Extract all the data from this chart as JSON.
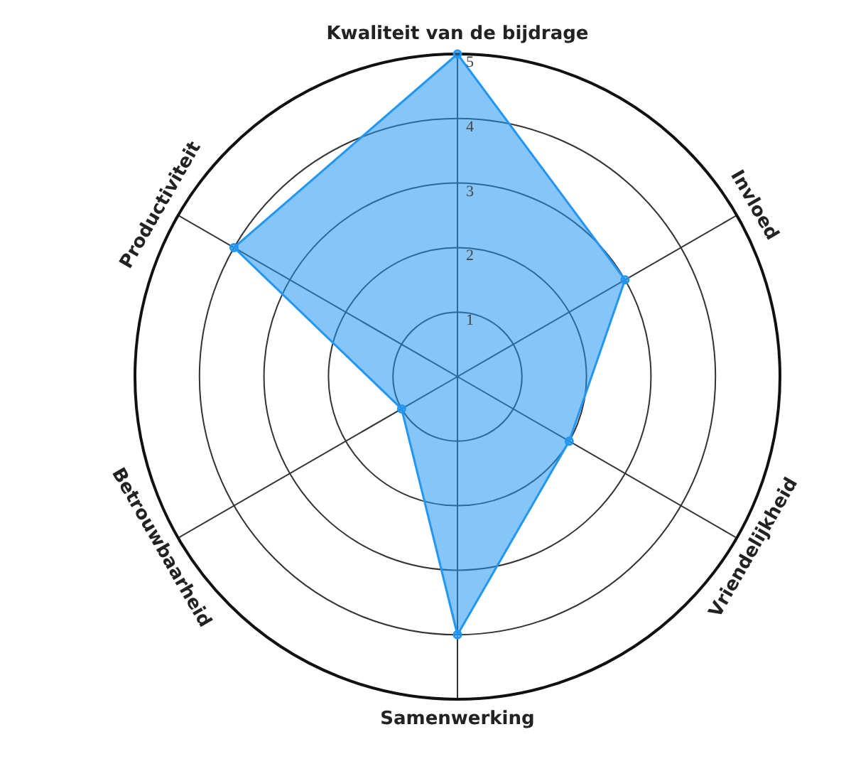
{
  "chart_data": {
    "type": "radar",
    "categories": [
      "Kwaliteit van de bijdrage",
      "Invloed",
      "Vriendelijkheid",
      "Samenwerking",
      "Betrouwbaarheid",
      "Productiviteit"
    ],
    "series": [
      {
        "color": "#2196f3",
        "values": [
          5,
          3,
          2,
          4,
          1,
          4
        ]
      }
    ],
    "ylim": [
      0,
      5
    ],
    "yticks": [
      1,
      2,
      3,
      4,
      5
    ],
    "grid": true,
    "marker": "circle"
  }
}
